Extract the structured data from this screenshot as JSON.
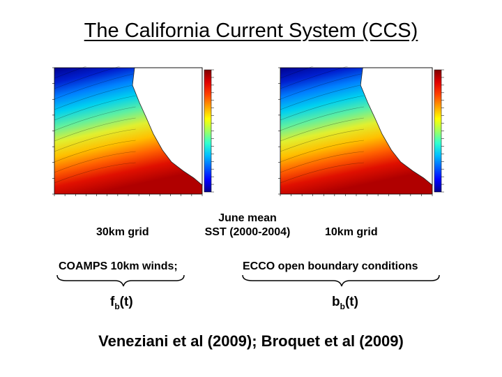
{
  "title": "The California Current System (CCS)",
  "maps": [
    {
      "label": "30km grid"
    },
    {
      "label": "10km grid"
    }
  ],
  "center_label": [
    "June mean",
    "SST (2000-2004)"
  ],
  "forcings": [
    {
      "text": "COAMPS 10km winds;",
      "symbol": {
        "base": "f",
        "sub": "b",
        "arg": "(t)"
      }
    },
    {
      "text": "ECCO open boundary conditions",
      "symbol": {
        "base": "b",
        "sub": "b",
        "arg": "(t)"
      }
    }
  ],
  "citation": "Veneziani et al (2009); Broquet et al (2009)"
}
